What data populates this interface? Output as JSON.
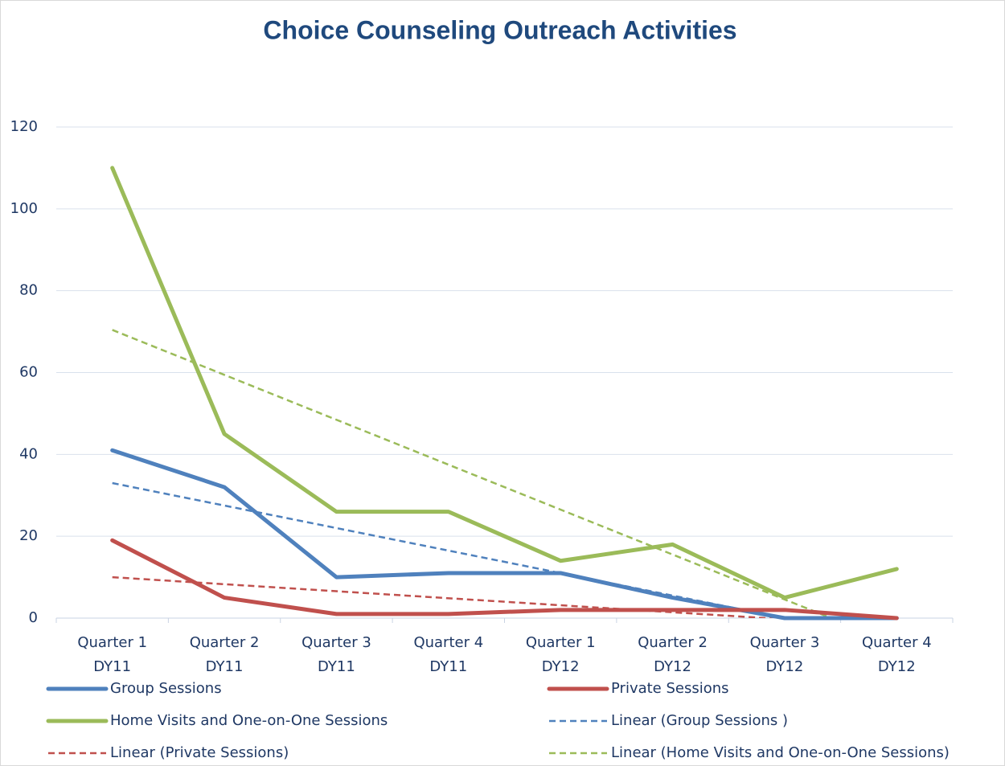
{
  "chart_data": {
    "type": "line",
    "title": "Choice Counseling Outreach Activities",
    "categories": [
      [
        "Quarter 1",
        "DY11"
      ],
      [
        "Quarter 2",
        "DY11"
      ],
      [
        "Quarter 3",
        "DY11"
      ],
      [
        "Quarter 4",
        "DY11"
      ],
      [
        "Quarter 1",
        "DY12"
      ],
      [
        "Quarter 2",
        "DY12"
      ],
      [
        "Quarter 3",
        "DY12"
      ],
      [
        "Quarter 4",
        "DY12"
      ]
    ],
    "series": [
      {
        "name": "Group Sessions",
        "color": "#4f81bd",
        "values": [
          41,
          32,
          10,
          11,
          11,
          5,
          0,
          0
        ],
        "trendline": {
          "name": "Linear (Group Sessions )",
          "type": "linear"
        }
      },
      {
        "name": "Private Sessions",
        "color": "#c0504d",
        "values": [
          19,
          5,
          1,
          1,
          2,
          2,
          2,
          0
        ],
        "trendline": {
          "name": "Linear (Private Sessions)",
          "type": "linear"
        }
      },
      {
        "name": "Home Visits and One-on-One Sessions",
        "color": "#9bbb59",
        "values": [
          110,
          45,
          26,
          26,
          14,
          18,
          5,
          12
        ],
        "trendline": {
          "name": "Linear (Home Visits and One-on-One Sessions)",
          "type": "linear"
        }
      }
    ],
    "ylim": [
      0,
      120
    ],
    "yticks": [
      0,
      20,
      40,
      60,
      80,
      100,
      120
    ],
    "grid": true,
    "legend": "bottom"
  }
}
